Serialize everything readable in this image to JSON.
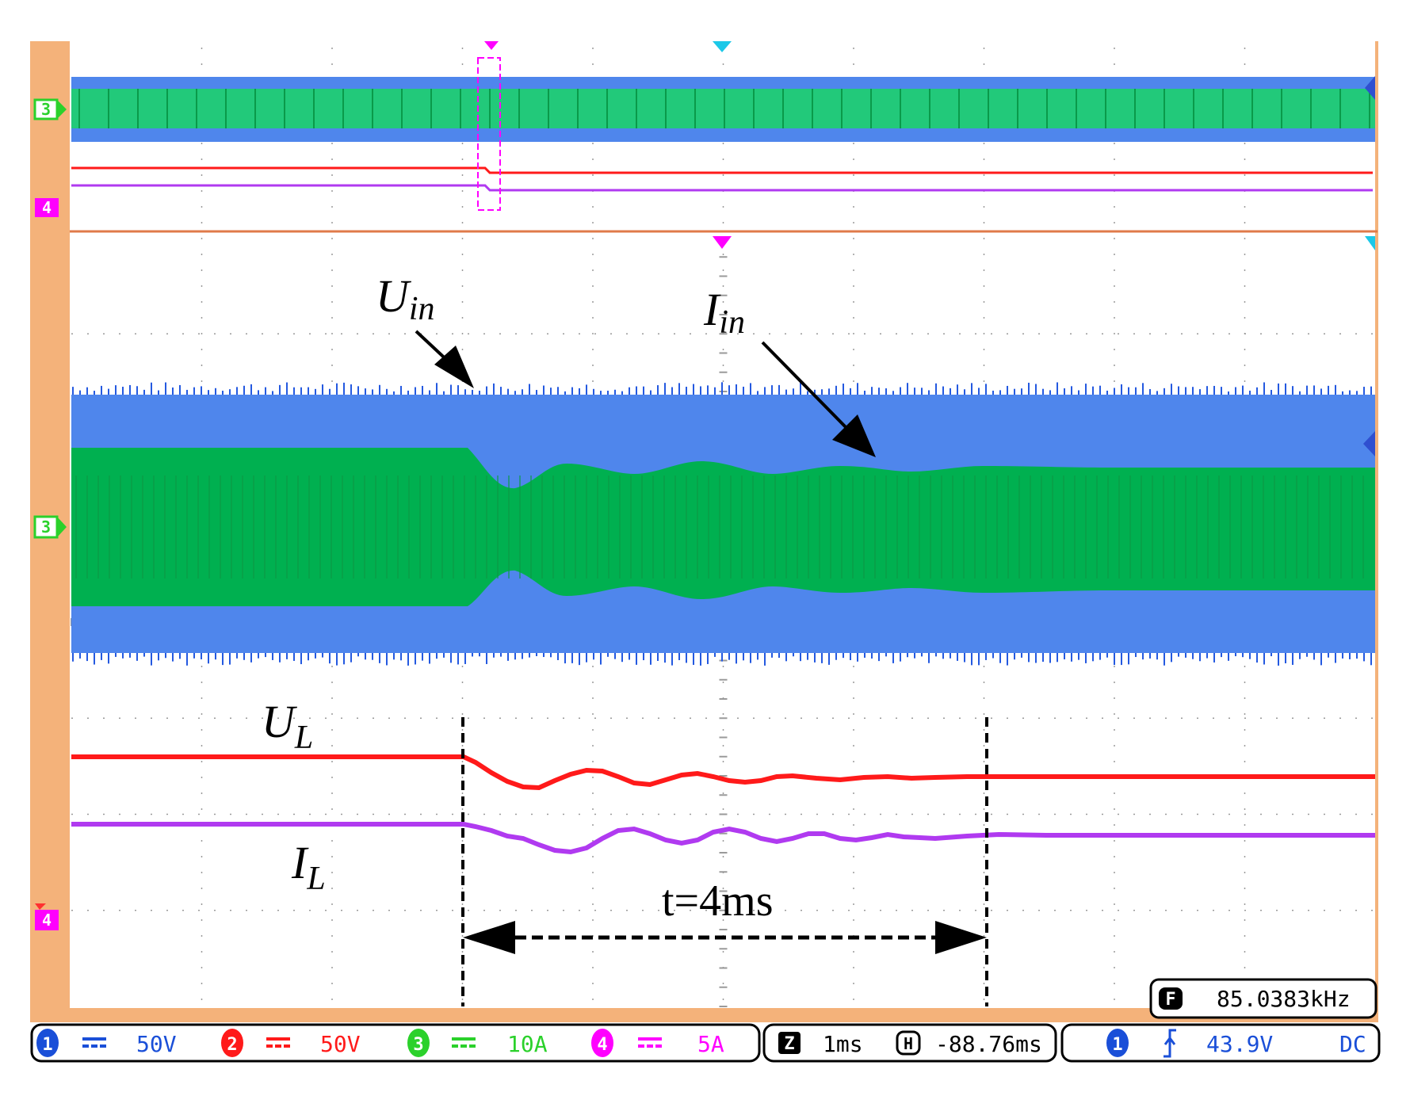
{
  "colors": {
    "frame": "#f4b27a",
    "ch1_blue": "#2f6ff2",
    "ch1_fill": "#4f86ec",
    "ch2_red": "#ff1a1a",
    "ch3_green": "#00b050",
    "ch4_magenta": "#b03af0",
    "marker_magenta": "#ff00ff",
    "marker_cyan": "#1cc8e8",
    "grid": "#9a9a9a"
  },
  "markers": {
    "ch3": "3",
    "ch4": "4"
  },
  "annotations": {
    "uin_main": "U",
    "uin_sub": "in",
    "iin_main": "I",
    "iin_sub": "in",
    "ul_main": "U",
    "ul_sub": "L",
    "il_main": "I",
    "il_sub": "L",
    "duration": "t=4ms"
  },
  "frequency_readout": {
    "icon": "F",
    "value": "85.0383kHz"
  },
  "status_bar": {
    "channels": [
      {
        "number": "1",
        "coupling": "DC",
        "scale": "50V"
      },
      {
        "number": "2",
        "coupling": "DC",
        "scale": "50V"
      },
      {
        "number": "3",
        "coupling": "DC",
        "scale": "10A"
      },
      {
        "number": "4",
        "coupling": "DC",
        "scale": "5A"
      }
    ],
    "timebase": {
      "icon": "Z",
      "value": "1ms"
    },
    "delay": {
      "icon": "H",
      "value": "-88.76ms"
    },
    "trigger": {
      "source": "1",
      "slope_icon": "rising-edge",
      "level": "43.9V",
      "coupling": "DC"
    }
  }
}
